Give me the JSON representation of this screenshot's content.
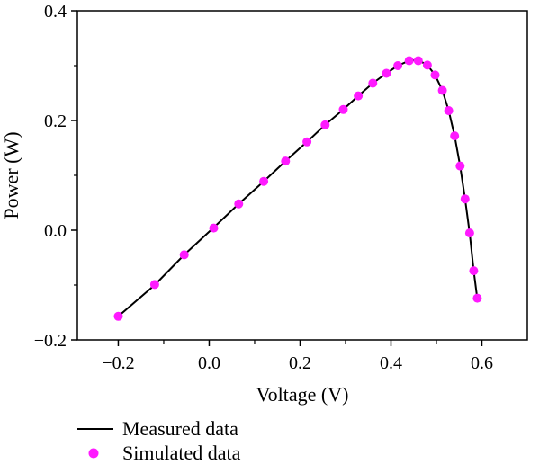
{
  "chart_data": {
    "type": "line",
    "title": "",
    "xlabel": "Voltage (V)",
    "ylabel": "Power (W)",
    "xlim": [
      -0.29,
      0.7
    ],
    "ylim": [
      -0.2,
      0.4
    ],
    "xticks": [
      -0.2,
      0.0,
      0.2,
      0.4,
      0.6
    ],
    "xtick_labels": [
      "−0.2",
      "0.0",
      "0.2",
      "0.4",
      "0.6"
    ],
    "yticks": [
      -0.2,
      0.0,
      0.2,
      0.4
    ],
    "ytick_labels": [
      "−0.2",
      "0.0",
      "0.2",
      "0.4"
    ],
    "grid": false,
    "legend_position": "bottom-left, below plot",
    "series": [
      {
        "name": "Measured data",
        "type": "line",
        "color": "#000000",
        "x": [
          -0.2,
          -0.12,
          -0.055,
          0.01,
          0.065,
          0.12,
          0.168,
          0.215,
          0.255,
          0.295,
          0.328,
          0.36,
          0.39,
          0.415,
          0.44,
          0.46,
          0.48,
          0.497,
          0.513,
          0.527,
          0.54,
          0.552,
          0.563,
          0.573,
          0.582,
          0.59
        ],
        "y": [
          -0.157,
          -0.1,
          -0.045,
          0.005,
          0.048,
          0.089,
          0.126,
          0.161,
          0.192,
          0.22,
          0.245,
          0.268,
          0.286,
          0.3,
          0.309,
          0.31,
          0.301,
          0.283,
          0.255,
          0.218,
          0.172,
          0.117,
          0.057,
          -0.005,
          -0.074,
          -0.125
        ]
      },
      {
        "name": "Simulated data",
        "type": "scatter",
        "color": "#ff1aff",
        "x": [
          -0.2,
          -0.12,
          -0.055,
          0.01,
          0.065,
          0.12,
          0.168,
          0.215,
          0.255,
          0.295,
          0.328,
          0.36,
          0.39,
          0.415,
          0.44,
          0.46,
          0.48,
          0.497,
          0.513,
          0.527,
          0.54,
          0.552,
          0.563,
          0.573,
          0.582,
          0.59
        ],
        "y": [
          -0.157,
          -0.099,
          -0.045,
          0.004,
          0.048,
          0.089,
          0.126,
          0.161,
          0.192,
          0.22,
          0.245,
          0.268,
          0.286,
          0.3,
          0.309,
          0.309,
          0.301,
          0.283,
          0.255,
          0.218,
          0.172,
          0.117,
          0.057,
          -0.005,
          -0.074,
          -0.124
        ]
      }
    ]
  }
}
